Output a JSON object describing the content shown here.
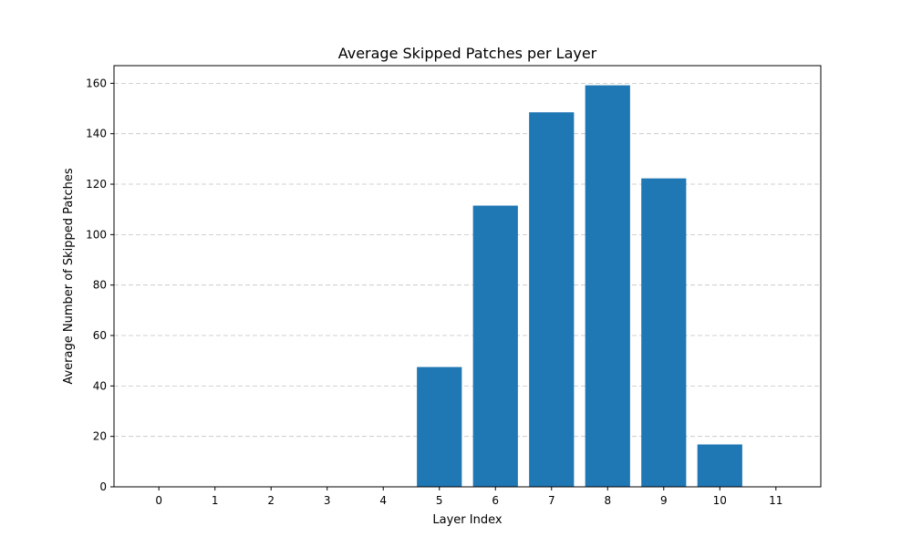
{
  "chart_data": {
    "type": "bar",
    "title": "Average Skipped Patches per Layer",
    "xlabel": "Layer Index",
    "ylabel": "Average Number of Skipped Patches",
    "categories": [
      "0",
      "1",
      "2",
      "3",
      "4",
      "5",
      "6",
      "7",
      "8",
      "9",
      "10",
      "11"
    ],
    "values": [
      0,
      0,
      0,
      0,
      0,
      47.5,
      111.5,
      148.5,
      159.2,
      122.3,
      16.8,
      0
    ],
    "ylim": [
      0,
      167
    ],
    "yticks": [
      "0",
      "20",
      "40",
      "60",
      "80",
      "100",
      "120",
      "140",
      "160"
    ],
    "grid": "y-dashed",
    "bar_color": "#1f77b4"
  }
}
